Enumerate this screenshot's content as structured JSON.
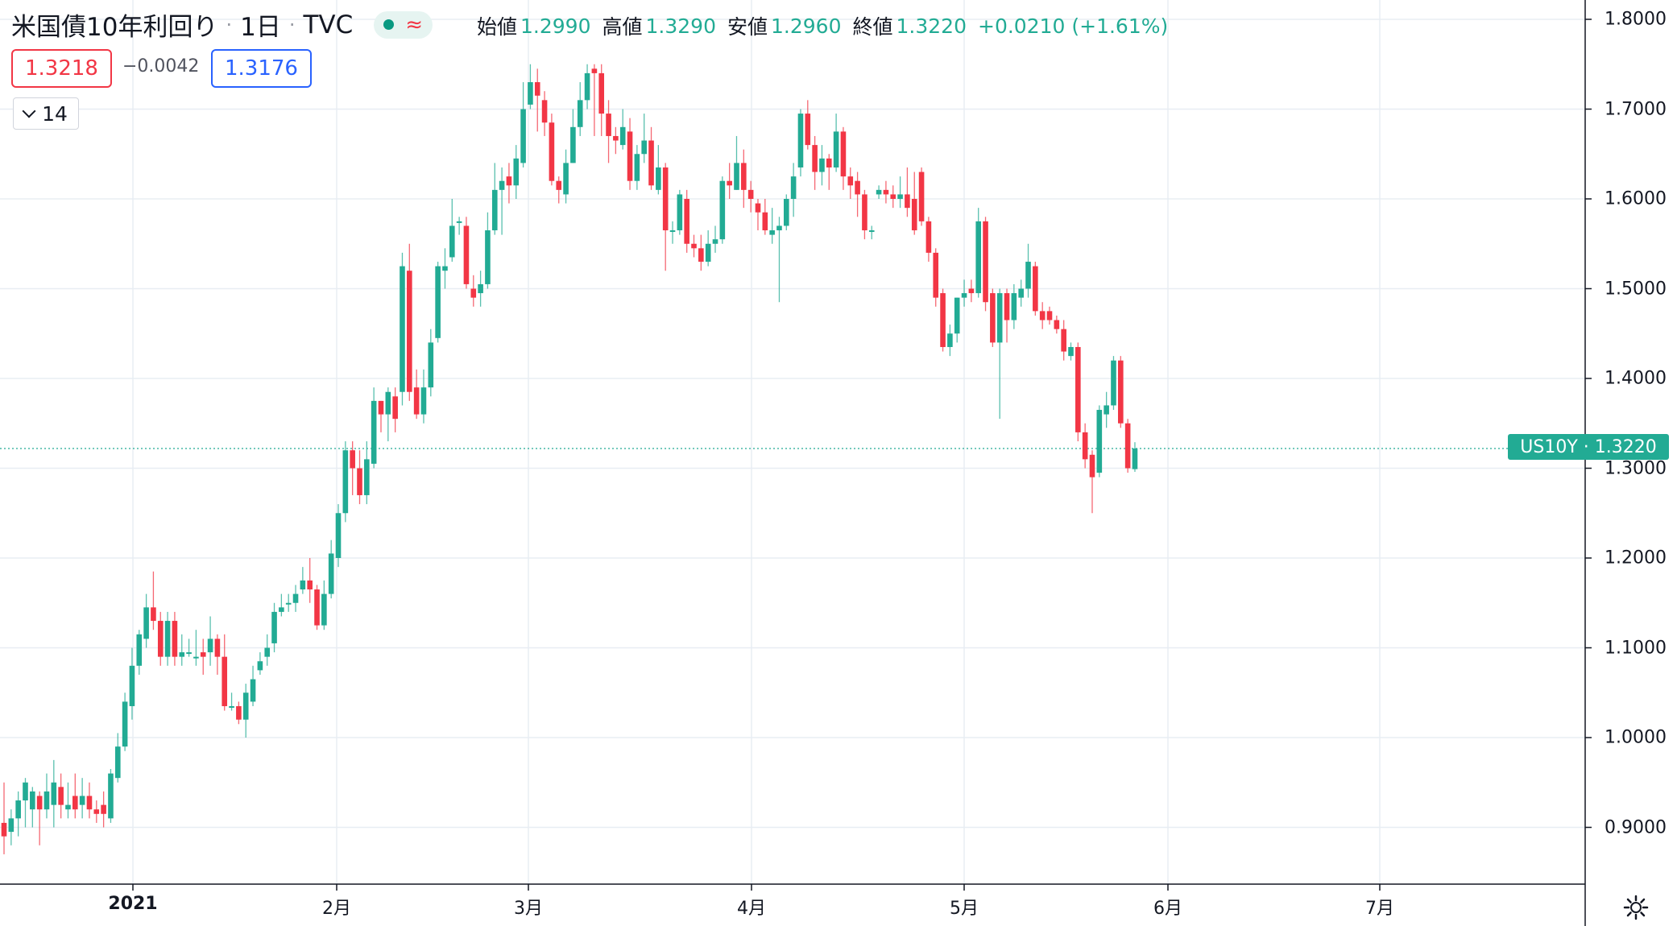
{
  "header": {
    "title": "米国債10年利回り",
    "sep1": "·",
    "interval": "1日",
    "sep2": "·",
    "source": "TVC",
    "wave": "≈",
    "ohlc": {
      "open_label": "始値",
      "open": "1.2990",
      "high_label": "高値",
      "high": "1.3290",
      "low_label": "安値",
      "low": "1.2960",
      "close_label": "終値",
      "close": "1.3220",
      "change": "+0.0210 (+1.61%)"
    }
  },
  "trade": {
    "bid": "1.3218",
    "spread": "−0.0042",
    "ask": "1.3176"
  },
  "indicator_toggle": {
    "label": "14"
  },
  "price_label": {
    "text": "US10Y · 1.3220",
    "value": 1.322
  },
  "colors": {
    "up": "#22ab94",
    "down": "#f23645",
    "grid": "#e8edf3",
    "axis": "#131722",
    "bid": "#f23645",
    "ask": "#2962ff"
  },
  "icons": {
    "settings": "gear-icon",
    "chevron": "chevron-down-icon",
    "dot": "live-dot-icon"
  },
  "chart_data": {
    "type": "candlestick",
    "title": "米国債10年利回り · 1日 · TVC",
    "y_ticks": [
      "1.8000",
      "1.7000",
      "1.6000",
      "1.5000",
      "1.4000",
      "1.3000",
      "1.2000",
      "1.1000",
      "1.0000",
      "0.9000"
    ],
    "x_ticks": [
      "2021",
      "2月",
      "3月",
      "4月",
      "5月",
      "6月",
      "7月"
    ],
    "ylim": [
      0.83,
      1.82
    ],
    "grid": true,
    "last_price_line": 1.322,
    "candles": [
      [
        0.905,
        0.89,
        0.95,
        0.87
      ],
      [
        0.895,
        0.91,
        0.92,
        0.88
      ],
      [
        0.91,
        0.93,
        0.94,
        0.89
      ],
      [
        0.93,
        0.95,
        0.955,
        0.9
      ],
      [
        0.92,
        0.94,
        0.945,
        0.9
      ],
      [
        0.935,
        0.92,
        0.94,
        0.88
      ],
      [
        0.92,
        0.94,
        0.96,
        0.91
      ],
      [
        0.925,
        0.95,
        0.975,
        0.9
      ],
      [
        0.945,
        0.925,
        0.96,
        0.91
      ],
      [
        0.92,
        0.925,
        0.95,
        0.91
      ],
      [
        0.935,
        0.92,
        0.96,
        0.91
      ],
      [
        0.925,
        0.935,
        0.955,
        0.91
      ],
      [
        0.935,
        0.92,
        0.95,
        0.91
      ],
      [
        0.92,
        0.915,
        0.93,
        0.905
      ],
      [
        0.925,
        0.915,
        0.94,
        0.9
      ],
      [
        0.91,
        0.96,
        0.965,
        0.905
      ],
      [
        0.955,
        0.99,
        1.005,
        0.95
      ],
      [
        0.99,
        1.04,
        1.05,
        0.985
      ],
      [
        1.035,
        1.08,
        1.1,
        1.02
      ],
      [
        1.08,
        1.115,
        1.12,
        1.07
      ],
      [
        1.11,
        1.145,
        1.16,
        1.1
      ],
      [
        1.145,
        1.13,
        1.185,
        1.12
      ],
      [
        1.13,
        1.09,
        1.14,
        1.08
      ],
      [
        1.09,
        1.13,
        1.14,
        1.08
      ],
      [
        1.13,
        1.09,
        1.14,
        1.08
      ],
      [
        1.09,
        1.095,
        1.115,
        1.08
      ],
      [
        1.095,
        1.095,
        1.11,
        1.09
      ],
      [
        1.09,
        1.09,
        1.12,
        1.08
      ],
      [
        1.095,
        1.09,
        1.11,
        1.07
      ],
      [
        1.095,
        1.11,
        1.135,
        1.08
      ],
      [
        1.11,
        1.09,
        1.115,
        1.07
      ],
      [
        1.09,
        1.035,
        1.115,
        1.03
      ],
      [
        1.035,
        1.035,
        1.05,
        1.03
      ],
      [
        1.035,
        1.02,
        1.04,
        1.015
      ],
      [
        1.02,
        1.05,
        1.06,
        1.0
      ],
      [
        1.04,
        1.065,
        1.08,
        1.035
      ],
      [
        1.075,
        1.085,
        1.095,
        1.07
      ],
      [
        1.09,
        1.1,
        1.115,
        1.08
      ],
      [
        1.105,
        1.14,
        1.15,
        1.095
      ],
      [
        1.14,
        1.145,
        1.16,
        1.135
      ],
      [
        1.15,
        1.15,
        1.16,
        1.14
      ],
      [
        1.15,
        1.16,
        1.17,
        1.14
      ],
      [
        1.165,
        1.175,
        1.19,
        1.16
      ],
      [
        1.175,
        1.165,
        1.2,
        1.15
      ],
      [
        1.165,
        1.125,
        1.17,
        1.12
      ],
      [
        1.125,
        1.16,
        1.175,
        1.12
      ],
      [
        1.16,
        1.205,
        1.22,
        1.155
      ],
      [
        1.2,
        1.25,
        1.26,
        1.19
      ],
      [
        1.25,
        1.32,
        1.33,
        1.24
      ],
      [
        1.32,
        1.3,
        1.33,
        1.27
      ],
      [
        1.3,
        1.27,
        1.32,
        1.26
      ],
      [
        1.27,
        1.31,
        1.33,
        1.26
      ],
      [
        1.305,
        1.375,
        1.39,
        1.3
      ],
      [
        1.375,
        1.36,
        1.375,
        1.34
      ],
      [
        1.36,
        1.385,
        1.39,
        1.33
      ],
      [
        1.38,
        1.355,
        1.39,
        1.34
      ],
      [
        1.385,
        1.525,
        1.54,
        1.37
      ],
      [
        1.52,
        1.385,
        1.55,
        1.375
      ],
      [
        1.39,
        1.36,
        1.41,
        1.355
      ],
      [
        1.36,
        1.39,
        1.41,
        1.35
      ],
      [
        1.39,
        1.44,
        1.455,
        1.38
      ],
      [
        1.445,
        1.525,
        1.53,
        1.44
      ],
      [
        1.52,
        1.525,
        1.545,
        1.5
      ],
      [
        1.535,
        1.57,
        1.6,
        1.53
      ],
      [
        1.575,
        1.575,
        1.58,
        1.56
      ],
      [
        1.57,
        1.505,
        1.58,
        1.5
      ],
      [
        1.5,
        1.49,
        1.515,
        1.48
      ],
      [
        1.495,
        1.505,
        1.52,
        1.48
      ],
      [
        1.505,
        1.565,
        1.585,
        1.5
      ],
      [
        1.565,
        1.61,
        1.64,
        1.56
      ],
      [
        1.61,
        1.62,
        1.635,
        1.56
      ],
      [
        1.625,
        1.615,
        1.64,
        1.595
      ],
      [
        1.615,
        1.645,
        1.66,
        1.6
      ],
      [
        1.64,
        1.7,
        1.73,
        1.635
      ],
      [
        1.705,
        1.73,
        1.75,
        1.7
      ],
      [
        1.73,
        1.715,
        1.745,
        1.675
      ],
      [
        1.71,
        1.685,
        1.72,
        1.67
      ],
      [
        1.685,
        1.62,
        1.695,
        1.615
      ],
      [
        1.62,
        1.61,
        1.625,
        1.595
      ],
      [
        1.605,
        1.64,
        1.655,
        1.595
      ],
      [
        1.64,
        1.68,
        1.7,
        1.64
      ],
      [
        1.68,
        1.71,
        1.73,
        1.67
      ],
      [
        1.71,
        1.74,
        1.75,
        1.7
      ],
      [
        1.745,
        1.74,
        1.75,
        1.67
      ],
      [
        1.74,
        1.695,
        1.75,
        1.67
      ],
      [
        1.695,
        1.67,
        1.71,
        1.64
      ],
      [
        1.67,
        1.665,
        1.68,
        1.65
      ],
      [
        1.66,
        1.68,
        1.7,
        1.655
      ],
      [
        1.675,
        1.62,
        1.69,
        1.61
      ],
      [
        1.62,
        1.65,
        1.66,
        1.61
      ],
      [
        1.65,
        1.665,
        1.695,
        1.64
      ],
      [
        1.665,
        1.615,
        1.68,
        1.61
      ],
      [
        1.61,
        1.635,
        1.66,
        1.605
      ],
      [
        1.635,
        1.565,
        1.64,
        1.52
      ],
      [
        1.565,
        1.565,
        1.575,
        1.55
      ],
      [
        1.565,
        1.605,
        1.61,
        1.56
      ],
      [
        1.6,
        1.55,
        1.61,
        1.54
      ],
      [
        1.55,
        1.545,
        1.56,
        1.535
      ],
      [
        1.545,
        1.53,
        1.56,
        1.52
      ],
      [
        1.53,
        1.55,
        1.565,
        1.525
      ],
      [
        1.55,
        1.555,
        1.57,
        1.54
      ],
      [
        1.555,
        1.62,
        1.625,
        1.55
      ],
      [
        1.62,
        1.615,
        1.64,
        1.6
      ],
      [
        1.61,
        1.64,
        1.67,
        1.61
      ],
      [
        1.64,
        1.61,
        1.655,
        1.59
      ],
      [
        1.61,
        1.6,
        1.62,
        1.585
      ],
      [
        1.595,
        1.585,
        1.6,
        1.565
      ],
      [
        1.585,
        1.565,
        1.6,
        1.56
      ],
      [
        1.56,
        1.565,
        1.59,
        1.55
      ],
      [
        1.565,
        1.57,
        1.58,
        1.485
      ],
      [
        1.57,
        1.6,
        1.605,
        1.565
      ],
      [
        1.6,
        1.625,
        1.64,
        1.58
      ],
      [
        1.635,
        1.695,
        1.7,
        1.625
      ],
      [
        1.695,
        1.66,
        1.71,
        1.655
      ],
      [
        1.66,
        1.63,
        1.67,
        1.61
      ],
      [
        1.63,
        1.645,
        1.66,
        1.615
      ],
      [
        1.645,
        1.635,
        1.65,
        1.61
      ],
      [
        1.635,
        1.675,
        1.695,
        1.63
      ],
      [
        1.675,
        1.625,
        1.68,
        1.61
      ],
      [
        1.625,
        1.615,
        1.635,
        1.6
      ],
      [
        1.62,
        1.605,
        1.63,
        1.58
      ],
      [
        1.605,
        1.565,
        1.61,
        1.555
      ],
      [
        1.565,
        1.565,
        1.57,
        1.555
      ],
      [
        1.605,
        1.61,
        1.615,
        1.6
      ],
      [
        1.61,
        1.605,
        1.62,
        1.595
      ],
      [
        1.605,
        1.6,
        1.615,
        1.59
      ],
      [
        1.6,
        1.605,
        1.625,
        1.59
      ],
      [
        1.605,
        1.59,
        1.635,
        1.58
      ],
      [
        1.6,
        1.565,
        1.63,
        1.56
      ],
      [
        1.63,
        1.575,
        1.635,
        1.57
      ],
      [
        1.575,
        1.54,
        1.58,
        1.53
      ],
      [
        1.54,
        1.49,
        1.545,
        1.48
      ],
      [
        1.495,
        1.435,
        1.5,
        1.43
      ],
      [
        1.435,
        1.45,
        1.46,
        1.425
      ],
      [
        1.45,
        1.49,
        1.49,
        1.44
      ],
      [
        1.49,
        1.495,
        1.51,
        1.48
      ],
      [
        1.5,
        1.495,
        1.51,
        1.485
      ],
      [
        1.495,
        1.575,
        1.59,
        1.49
      ],
      [
        1.575,
        1.485,
        1.58,
        1.475
      ],
      [
        1.495,
        1.44,
        1.5,
        1.435
      ],
      [
        1.44,
        1.495,
        1.5,
        1.355
      ],
      [
        1.495,
        1.465,
        1.5,
        1.44
      ],
      [
        1.465,
        1.495,
        1.505,
        1.455
      ],
      [
        1.49,
        1.5,
        1.51,
        1.48
      ],
      [
        1.5,
        1.53,
        1.55,
        1.49
      ],
      [
        1.525,
        1.475,
        1.53,
        1.47
      ],
      [
        1.475,
        1.465,
        1.485,
        1.455
      ],
      [
        1.475,
        1.465,
        1.48,
        1.46
      ],
      [
        1.465,
        1.455,
        1.47,
        1.45
      ],
      [
        1.455,
        1.43,
        1.465,
        1.42
      ],
      [
        1.425,
        1.435,
        1.44,
        1.42
      ],
      [
        1.435,
        1.34,
        1.44,
        1.33
      ],
      [
        1.34,
        1.31,
        1.35,
        1.3
      ],
      [
        1.315,
        1.29,
        1.32,
        1.25
      ],
      [
        1.295,
        1.365,
        1.37,
        1.29
      ],
      [
        1.36,
        1.37,
        1.385,
        1.345
      ],
      [
        1.37,
        1.42,
        1.425,
        1.365
      ],
      [
        1.42,
        1.35,
        1.425,
        1.345
      ],
      [
        1.35,
        1.3,
        1.355,
        1.295
      ],
      [
        1.299,
        1.322,
        1.329,
        1.296
      ]
    ]
  }
}
